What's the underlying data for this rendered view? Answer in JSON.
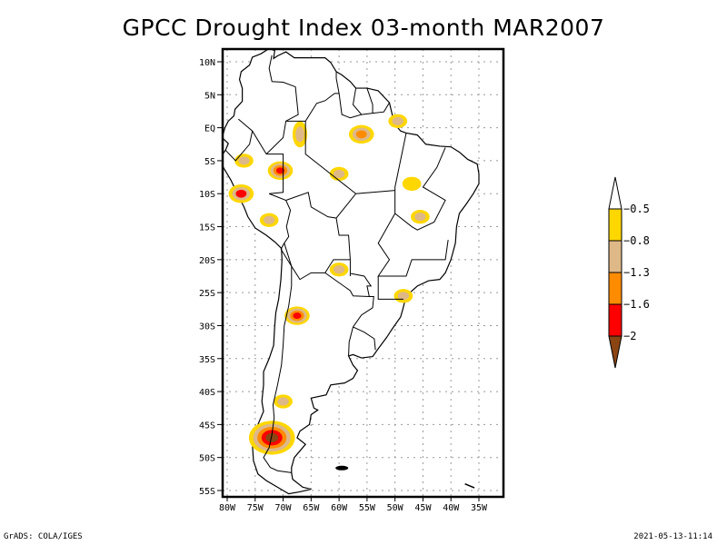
{
  "title": "GPCC Drought Index 03-month MAR2007",
  "footer": {
    "left": "GrADS: COLA/IGES",
    "right": "2021-05-13-11:14"
  },
  "map": {
    "region": "South America",
    "lat_ticks": [
      "10N",
      "5N",
      "EQ",
      "5S",
      "10S",
      "15S",
      "20S",
      "25S",
      "30S",
      "35S",
      "40S",
      "45S",
      "50S",
      "55S"
    ],
    "lat_values": [
      10,
      5,
      0,
      -5,
      -10,
      -15,
      -20,
      -25,
      -30,
      -35,
      -40,
      -45,
      -50,
      -55
    ],
    "lon_ticks": [
      "80W",
      "75W",
      "70W",
      "65W",
      "60W",
      "55W",
      "50W",
      "45W",
      "40W",
      "35W"
    ],
    "lon_values": [
      -80,
      -75,
      -70,
      -65,
      -60,
      -55,
      -50,
      -45,
      -40,
      -35
    ],
    "lon_range": [
      -82,
      -32
    ],
    "lat_range": [
      -56,
      12
    ],
    "grid": "dotted"
  },
  "legend": {
    "orientation": "vertical",
    "placement": "right",
    "labels": [
      "-0.5",
      "-0.8",
      "-1.3",
      "-1.6",
      "-2"
    ],
    "bins": [
      {
        "name": "above -0.5",
        "color": "#ffffff"
      },
      {
        "name": "-0.8 to -0.5",
        "color": "#ffd700"
      },
      {
        "name": "-1.3 to -0.8",
        "color": "#deb887"
      },
      {
        "name": "-1.6 to -1.3",
        "color": "#ff8c00"
      },
      {
        "name": "-2 to -1.6",
        "color": "#ff0000"
      },
      {
        "name": "below -2",
        "color": "#8b4513"
      }
    ]
  },
  "drought_areas": [
    {
      "name": "north-amazon",
      "lon": -67,
      "lat": -1,
      "levels": [
        "#ffd700",
        "#deb887"
      ]
    },
    {
      "name": "central-amazon",
      "lon": -70.5,
      "lat": -6.5,
      "levels": [
        "#ffd700",
        "#deb887",
        "#ff8c00",
        "#ff0000"
      ]
    },
    {
      "name": "amazon-east",
      "lon": -60,
      "lat": -7,
      "levels": [
        "#ffd700",
        "#deb887"
      ]
    },
    {
      "name": "para-north",
      "lon": -56,
      "lat": -1,
      "levels": [
        "#ffd700",
        "#deb887",
        "#ff8c00"
      ]
    },
    {
      "name": "amapa",
      "lon": -49.5,
      "lat": 1,
      "levels": [
        "#ffd700",
        "#deb887"
      ]
    },
    {
      "name": "peru-north",
      "lon": -77,
      "lat": -5,
      "levels": [
        "#ffd700",
        "#deb887"
      ]
    },
    {
      "name": "peru-central",
      "lon": -77.5,
      "lat": -10,
      "levels": [
        "#ffd700",
        "#deb887",
        "#ff0000"
      ]
    },
    {
      "name": "peru-south",
      "lon": -72.5,
      "lat": -14,
      "levels": [
        "#ffd700",
        "#deb887"
      ]
    },
    {
      "name": "tocantins",
      "lon": -47,
      "lat": -8.5,
      "levels": [
        "#ffd700"
      ]
    },
    {
      "name": "bahia-west",
      "lon": -45.5,
      "lat": -13.5,
      "levels": [
        "#ffd700",
        "#deb887"
      ]
    },
    {
      "name": "paraguay-chaco",
      "lon": -60,
      "lat": -21.5,
      "levels": [
        "#ffd700",
        "#deb887"
      ]
    },
    {
      "name": "santa-catarina",
      "lon": -48.5,
      "lat": -25.5,
      "levels": [
        "#ffd700",
        "#deb887"
      ]
    },
    {
      "name": "argentina-nw",
      "lon": -67.5,
      "lat": -28.5,
      "levels": [
        "#ffd700",
        "#deb887",
        "#ff8c00",
        "#ff0000"
      ]
    },
    {
      "name": "patagonia-north",
      "lon": -70,
      "lat": -41.5,
      "levels": [
        "#ffd700",
        "#deb887"
      ]
    },
    {
      "name": "patagonia-south",
      "lon": -72,
      "lat": -47,
      "levels": [
        "#ffd700",
        "#deb887",
        "#ff8c00",
        "#ff0000",
        "#8b4513"
      ]
    }
  ]
}
